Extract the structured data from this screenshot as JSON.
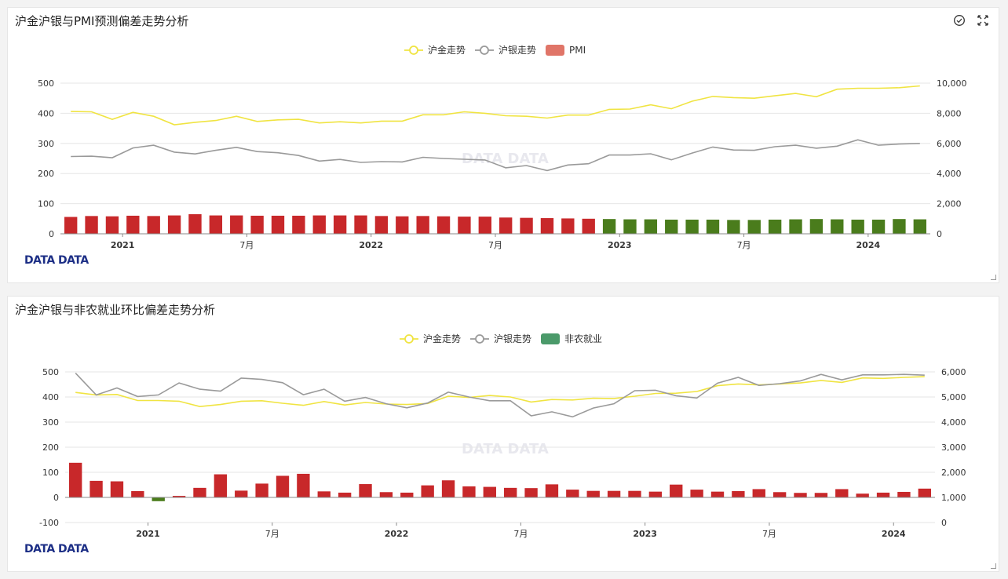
{
  "panels": [
    {
      "title": "沪金沪银与PMI预测偏差走势分析",
      "legend": [
        {
          "label": "沪金走势",
          "color": "#f0e442",
          "kind": "line"
        },
        {
          "label": "沪银走势",
          "color": "#9a9a9a",
          "kind": "line"
        },
        {
          "label": "PMI",
          "color": "#e07568",
          "kind": "bar"
        }
      ],
      "brand": "DATA DATA",
      "watermark": "DATA DATA",
      "icons": [
        "check-circle-icon",
        "expand-icon"
      ]
    },
    {
      "title": "沪金沪银与非农就业环比偏差走势分析",
      "legend": [
        {
          "label": "沪金走势",
          "color": "#f0e442",
          "kind": "line"
        },
        {
          "label": "沪银走势",
          "color": "#9a9a9a",
          "kind": "line"
        },
        {
          "label": "非农就业",
          "color": "#4b9a6a",
          "kind": "bar"
        }
      ],
      "brand": "DATA DATA",
      "watermark": "DATA DATA",
      "icons": []
    }
  ],
  "chart_data": [
    {
      "type": "bar",
      "title": "沪金沪银与PMI预测偏差走势分析",
      "x_ticks": [
        {
          "label": "2021",
          "i": 3,
          "bold": true
        },
        {
          "label": "7月",
          "i": 9,
          "bold": false
        },
        {
          "label": "2022",
          "i": 15,
          "bold": true
        },
        {
          "label": "7月",
          "i": 21,
          "bold": false
        },
        {
          "label": "2023",
          "i": 27,
          "bold": true
        },
        {
          "label": "7月",
          "i": 33,
          "bold": false
        },
        {
          "label": "2024",
          "i": 39,
          "bold": true
        }
      ],
      "y_left": {
        "min": 0,
        "max": 500,
        "ticks": [
          0,
          100,
          200,
          300,
          400,
          500
        ]
      },
      "y_right": {
        "min": 0,
        "max": 10000,
        "ticks": [
          "0",
          "2,000",
          "4,000",
          "6,000",
          "8,000",
          "10,000"
        ]
      },
      "bar_colors": {
        "positive": "#c8282a",
        "negative": "#4a7c1c"
      },
      "series": [
        {
          "name": "沪金走势",
          "kind": "line",
          "axis": "left",
          "color": "#f0e442",
          "values": [
            406,
            405,
            380,
            403,
            390,
            362,
            370,
            376,
            390,
            373,
            378,
            380,
            368,
            372,
            368,
            374,
            374,
            395,
            395,
            405,
            400,
            392,
            390,
            384,
            394,
            394,
            413,
            414,
            428,
            415,
            440,
            456,
            452,
            450,
            458,
            466,
            455,
            480,
            483,
            483,
            485,
            491
          ]
        },
        {
          "name": "沪银走势",
          "kind": "line",
          "axis": "right",
          "color": "#9a9a9a",
          "values": [
            5130,
            5150,
            5050,
            5700,
            5880,
            5420,
            5300,
            5540,
            5740,
            5460,
            5380,
            5200,
            4830,
            4940,
            4740,
            4790,
            4770,
            5080,
            5000,
            4950,
            4900,
            4380,
            4530,
            4200,
            4570,
            4650,
            5230,
            5230,
            5310,
            4910,
            5360,
            5760,
            5560,
            5540,
            5780,
            5880,
            5680,
            5820,
            6240,
            5880,
            5960,
            6000
          ]
        },
        {
          "name": "PMI",
          "kind": "bar",
          "axis": "left",
          "values": [
            56,
            59,
            58,
            60,
            59,
            61,
            65,
            61,
            61,
            60,
            60,
            60,
            61,
            61,
            61,
            59,
            58,
            59,
            58,
            57,
            57,
            54,
            53,
            52,
            51,
            50,
            -49,
            -48,
            -48,
            -47,
            -47,
            -47,
            -46,
            -46,
            -47,
            -48,
            -49,
            -48,
            -47,
            -47,
            -49,
            -48
          ]
        }
      ]
    },
    {
      "type": "bar",
      "title": "沪金沪银与非农就业环比偏差走势分析",
      "x_ticks": [
        {
          "label": "2021",
          "i": 4,
          "bold": true
        },
        {
          "label": "7月",
          "i": 10,
          "bold": false
        },
        {
          "label": "2022",
          "i": 16,
          "bold": true
        },
        {
          "label": "7月",
          "i": 22,
          "bold": false
        },
        {
          "label": "2023",
          "i": 28,
          "bold": true
        },
        {
          "label": "7月",
          "i": 34,
          "bold": false
        },
        {
          "label": "2024",
          "i": 40,
          "bold": true
        }
      ],
      "y_left": {
        "min": -100,
        "max": 500,
        "ticks": [
          -100,
          0,
          100,
          200,
          300,
          400,
          500
        ]
      },
      "y_right": {
        "min": 0,
        "max": 6000,
        "ticks": [
          "0",
          "1,000",
          "2,000",
          "3,000",
          "4,000",
          "5,000",
          "6,000"
        ]
      },
      "bar_colors": {
        "positive": "#c8282a",
        "negative": "#4a7c1c"
      },
      "series": [
        {
          "name": "沪金走势",
          "kind": "line",
          "axis": "left",
          "color": "#f0e442",
          "values": [
            418,
            408,
            410,
            386,
            386,
            383,
            362,
            370,
            383,
            385,
            375,
            367,
            382,
            368,
            378,
            372,
            370,
            374,
            403,
            398,
            406,
            400,
            380,
            390,
            388,
            395,
            394,
            403,
            414,
            415,
            422,
            445,
            452,
            448,
            452,
            456,
            466,
            458,
            476,
            474,
            478,
            481
          ]
        },
        {
          "name": "沪银走势",
          "kind": "line",
          "axis": "right",
          "color": "#9a9a9a",
          "values": [
            5950,
            5080,
            5360,
            5020,
            5080,
            5560,
            5310,
            5230,
            5750,
            5700,
            5570,
            5090,
            5310,
            4830,
            4980,
            4730,
            4570,
            4760,
            5190,
            5000,
            4850,
            4850,
            4250,
            4410,
            4210,
            4560,
            4730,
            5250,
            5270,
            5050,
            4960,
            5550,
            5780,
            5460,
            5530,
            5640,
            5900,
            5680,
            5880,
            5880,
            5900,
            5870
          ]
        },
        {
          "name": "非农就业",
          "kind": "bar",
          "axis": "left",
          "values": [
            138,
            66,
            64,
            25,
            -15,
            6,
            38,
            92,
            27,
            55,
            86,
            94,
            24,
            19,
            53,
            21,
            19,
            48,
            68,
            44,
            42,
            38,
            37,
            52,
            31,
            26,
            26,
            26,
            23,
            51,
            31,
            23,
            25,
            33,
            21,
            18,
            18,
            33,
            15,
            19,
            22,
            35
          ]
        }
      ]
    }
  ]
}
